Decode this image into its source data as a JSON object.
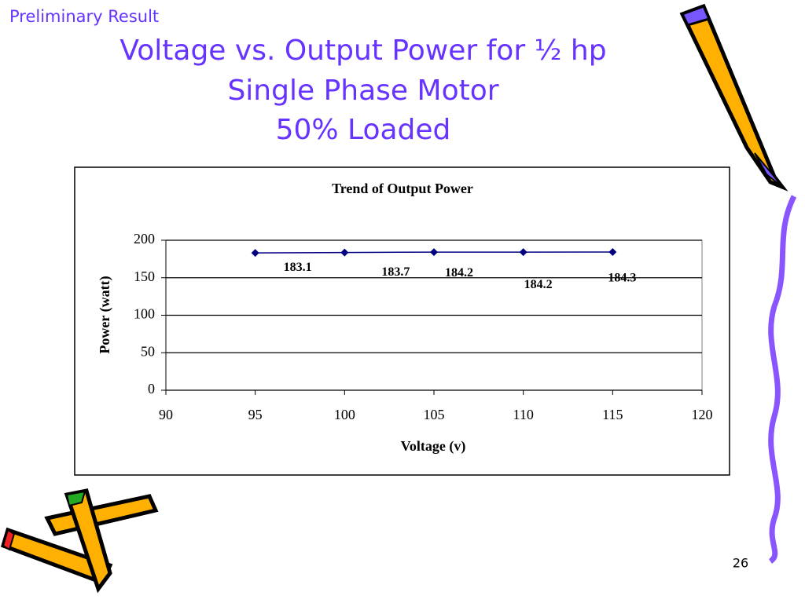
{
  "header": {
    "label": "Preliminary Result",
    "title_lines": [
      "Voltage vs. Output Power for ½ hp",
      "Single Phase Motor",
      "50% Loaded"
    ]
  },
  "slide_number": "26",
  "chart_data": {
    "type": "line",
    "title": "Trend of Output Power",
    "x_label": "Voltage (v)",
    "y_label": "Power (watt)",
    "x": [
      95,
      100,
      105,
      110,
      115
    ],
    "series": [
      {
        "name": "Output Power",
        "color": "#000080",
        "values": [
          183.1,
          183.7,
          184.2,
          184.2,
          184.3
        ]
      }
    ],
    "xlim": [
      90,
      120
    ],
    "xticks": [
      90,
      95,
      100,
      105,
      110,
      115,
      120
    ],
    "ylim": [
      0,
      200
    ],
    "yticks": [
      0,
      50,
      100,
      150,
      200
    ],
    "grid": true,
    "legend": false
  }
}
